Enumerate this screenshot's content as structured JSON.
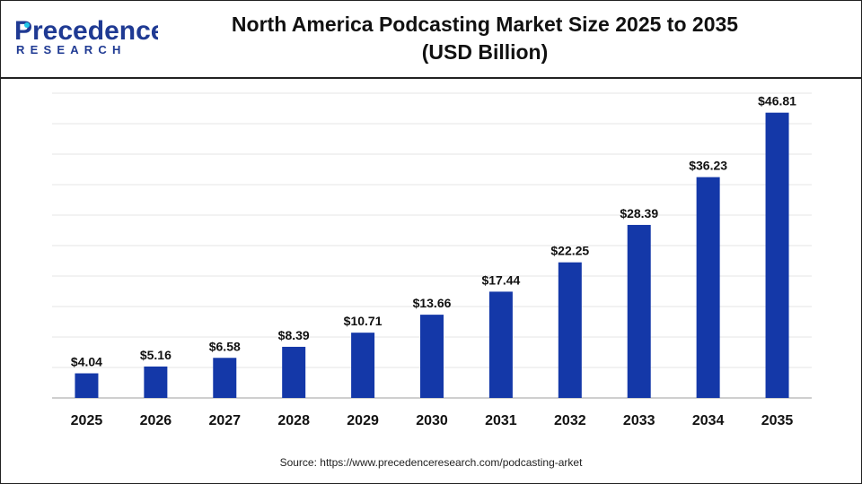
{
  "logo": {
    "line1": "Precedence",
    "line2": "RESEARCH",
    "colors": {
      "primary": "#1f3a93",
      "accent": "#22c7e8"
    }
  },
  "title": {
    "line1": "North America Podcasting Market Size 2025 to 2035",
    "line2": "(USD Billion)"
  },
  "source": "Source: https://www.precedenceresearch.com/podcasting-arket",
  "chart_data": {
    "type": "bar",
    "categories": [
      "2025",
      "2026",
      "2027",
      "2028",
      "2029",
      "2030",
      "2031",
      "2032",
      "2033",
      "2034",
      "2035"
    ],
    "values": [
      4.04,
      5.16,
      6.58,
      8.39,
      10.71,
      13.66,
      17.44,
      22.25,
      28.39,
      36.23,
      46.81
    ],
    "data_labels": [
      "$4.04",
      "$5.16",
      "$6.58",
      "$8.39",
      "$10.71",
      "$13.66",
      "$17.44",
      "$22.25",
      "$28.39",
      "$36.23",
      "$46.81"
    ],
    "ylim": [
      0,
      50
    ],
    "grid": true,
    "bar_color": "#1438a8"
  }
}
